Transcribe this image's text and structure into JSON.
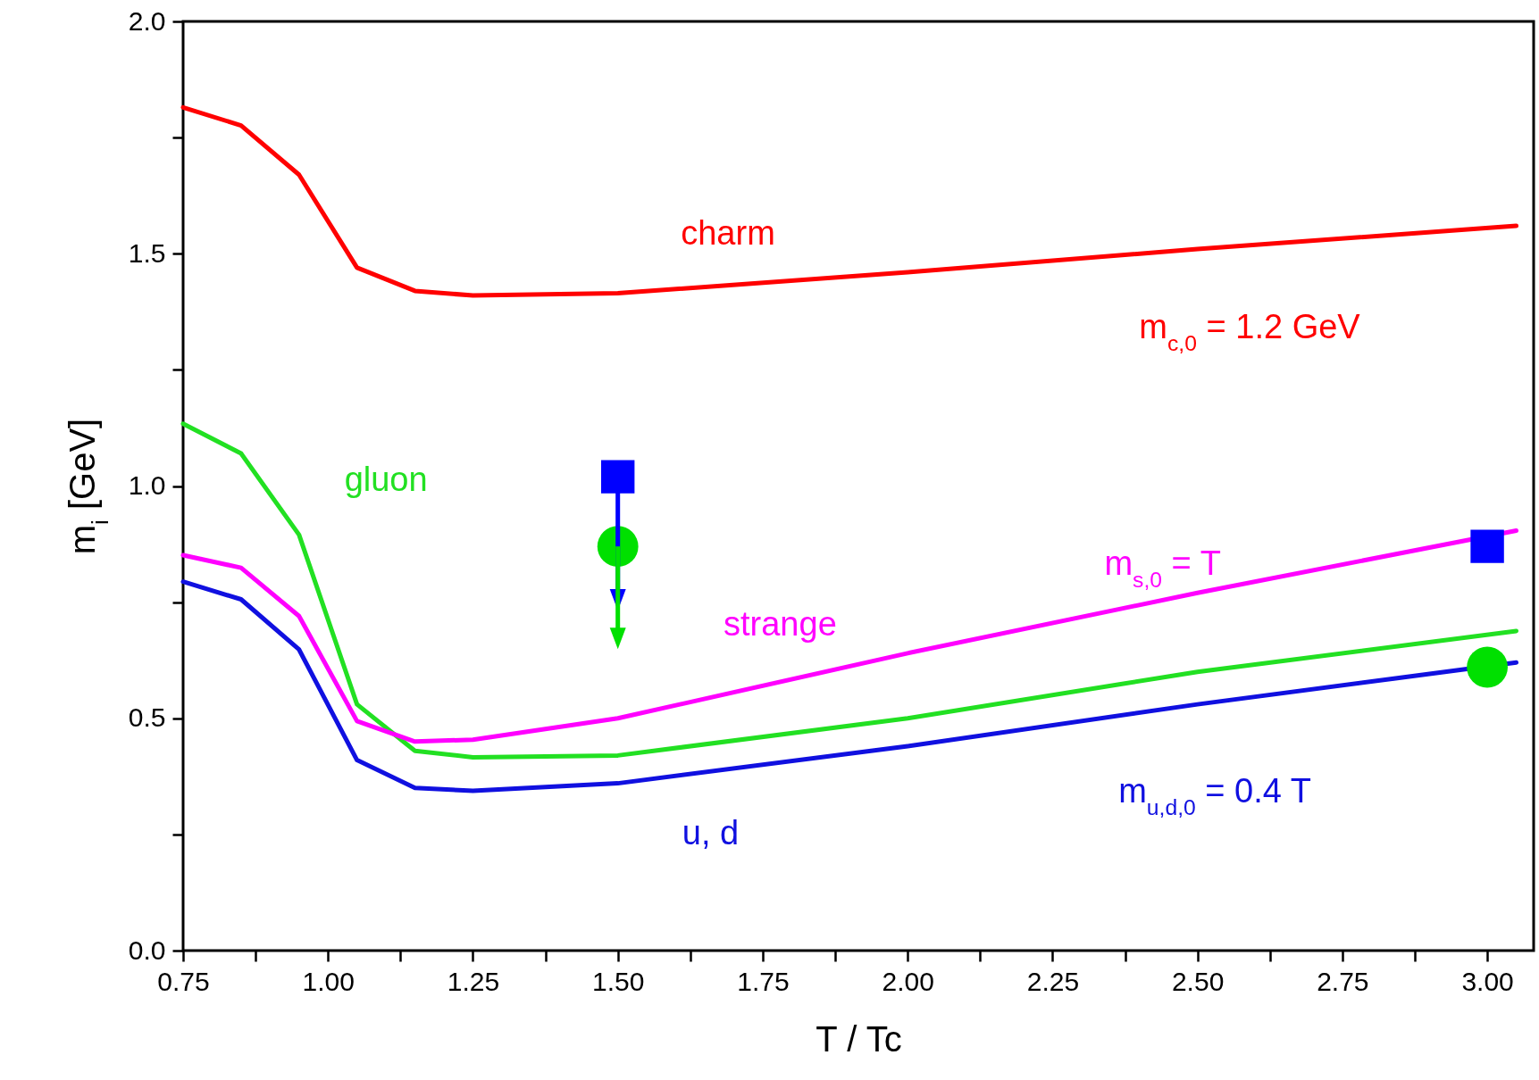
{
  "chart_data": {
    "type": "line",
    "xlabel": "T / Tc",
    "ylabel": "m$_{i}$ [GeV]",
    "xlim": [
      0.75,
      3.08
    ],
    "ylim": [
      0,
      2
    ],
    "xticks": [
      0.75,
      {
        "value": 0.875,
        "label": null
      },
      {
        "value": 1,
        "label": "1.00"
      },
      {
        "value": 1.125,
        "label": null
      },
      1.25,
      {
        "value": 1.375,
        "label": null
      },
      {
        "value": 1.5,
        "label": "1.50"
      },
      {
        "value": 1.625,
        "label": null
      },
      1.75,
      {
        "value": 1.875,
        "label": null
      },
      {
        "value": 2,
        "label": "2.00"
      },
      {
        "value": 2.125,
        "label": null
      },
      2.25,
      {
        "value": 2.375,
        "label": null
      },
      {
        "value": 2.5,
        "label": "2.50"
      },
      {
        "value": 2.625,
        "label": null
      },
      2.75,
      {
        "value": 2.875,
        "label": null
      },
      {
        "value": 3,
        "label": "3.00"
      }
    ],
    "yticks": [
      {
        "value": 0,
        "label": "0.0"
      },
      {
        "value": 0.25,
        "label": null
      },
      0.5,
      {
        "value": 0.75,
        "label": null
      },
      {
        "value": 1,
        "label": "1.0"
      },
      {
        "value": 1.25,
        "label": null
      },
      1.5,
      {
        "value": 1.75,
        "label": null
      },
      {
        "value": 2,
        "label": "2.0"
      }
    ],
    "line_style": "solid",
    "grid": false,
    "series": [
      {
        "name": "charm",
        "color": "#ff0000",
        "x": [
          0.75,
          0.85,
          0.95,
          1.05,
          1.15,
          1.25,
          1.5,
          2.0,
          2.5,
          3.05
        ],
        "values": [
          1.815,
          1.776,
          1.67,
          1.47,
          1.42,
          1.41,
          1.415,
          1.46,
          1.51,
          1.56
        ]
      },
      {
        "name": "gluon",
        "color": "#22e022",
        "x": [
          0.75,
          0.85,
          0.95,
          1.05,
          1.15,
          1.25,
          1.5,
          2.0,
          2.5,
          3.05
        ],
        "values": [
          1.134,
          1.07,
          0.895,
          0.53,
          0.43,
          0.416,
          0.42,
          0.5,
          0.6,
          0.688
        ]
      },
      {
        "name": "strange",
        "color": "#ff00ff",
        "x": [
          0.75,
          0.85,
          0.95,
          1.05,
          1.15,
          1.25,
          1.5,
          2.0,
          2.5,
          3.05
        ],
        "values": [
          0.851,
          0.824,
          0.72,
          0.494,
          0.45,
          0.454,
          0.5,
          0.64,
          0.77,
          0.904
        ]
      },
      {
        "name": "u, d",
        "color": "#1010e0",
        "x": [
          0.75,
          0.85,
          0.95,
          1.05,
          1.15,
          1.25,
          1.5,
          2.0,
          2.5,
          3.05
        ],
        "values": [
          0.794,
          0.756,
          0.648,
          0.41,
          0.35,
          0.344,
          0.36,
          0.44,
          0.53,
          0.62
        ]
      },
      {
        "type": "scatter",
        "marker": "square",
        "color": "#0000ff",
        "x": [
          1.5,
          3.0
        ],
        "values": [
          1.02,
          0.87
        ]
      },
      {
        "type": "scatter",
        "marker": "circle",
        "color": "#00e000",
        "x": [
          1.5,
          3.0
        ],
        "values": [
          0.87,
          0.61
        ]
      }
    ],
    "annotations": [
      "m$_{c,0}$ = 1.2 GeV",
      "m$_{s,0}$ = T",
      "m$_{u,d,0}$ = 0.4 T"
    ]
  }
}
